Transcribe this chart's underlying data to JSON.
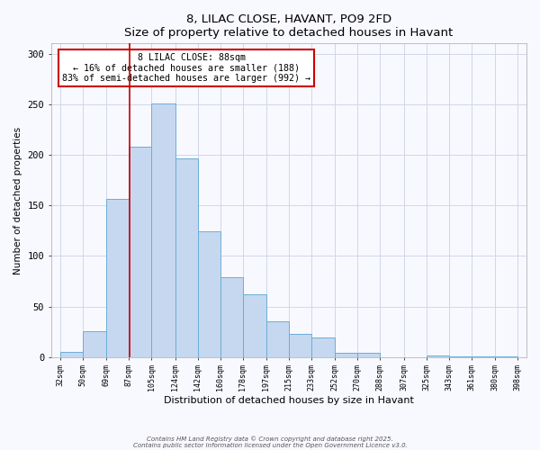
{
  "title": "8, LILAC CLOSE, HAVANT, PO9 2FD",
  "subtitle": "Size of property relative to detached houses in Havant",
  "xlabel": "Distribution of detached houses by size in Havant",
  "ylabel": "Number of detached properties",
  "bar_left_edges": [
    32,
    50,
    69,
    87,
    105,
    124,
    142,
    160,
    178,
    197,
    215,
    233,
    252,
    270,
    288,
    307,
    325,
    343,
    361,
    380
  ],
  "bar_widths": [
    18,
    19,
    18,
    18,
    19,
    18,
    18,
    18,
    19,
    18,
    18,
    19,
    18,
    18,
    19,
    18,
    18,
    18,
    19,
    18
  ],
  "bar_heights": [
    5,
    26,
    156,
    208,
    251,
    196,
    124,
    79,
    62,
    35,
    23,
    19,
    4,
    4,
    0,
    0,
    2,
    1,
    1,
    1
  ],
  "tick_labels": [
    "32sqm",
    "50sqm",
    "69sqm",
    "87sqm",
    "105sqm",
    "124sqm",
    "142sqm",
    "160sqm",
    "178sqm",
    "197sqm",
    "215sqm",
    "233sqm",
    "252sqm",
    "270sqm",
    "288sqm",
    "307sqm",
    "325sqm",
    "343sqm",
    "361sqm",
    "380sqm",
    "398sqm"
  ],
  "tick_positions": [
    32,
    50,
    69,
    87,
    105,
    124,
    142,
    160,
    178,
    197,
    215,
    233,
    252,
    270,
    288,
    307,
    325,
    343,
    361,
    380,
    398
  ],
  "bar_color": "#c5d8f0",
  "bar_edge_color": "#6baed6",
  "marker_x": 88,
  "marker_color": "#cc0000",
  "ylim": [
    0,
    310
  ],
  "xlim": [
    25,
    405
  ],
  "annotation_title": "8 LILAC CLOSE: 88sqm",
  "annotation_line1": "← 16% of detached houses are smaller (188)",
  "annotation_line2": "83% of semi-detached houses are larger (992) →",
  "annotation_box_color": "#ffffff",
  "annotation_box_edge_color": "#cc0000",
  "footer_line1": "Contains HM Land Registry data © Crown copyright and database right 2025.",
  "footer_line2": "Contains public sector information licensed under the Open Government Licence v3.0.",
  "background_color": "#f8f8ff",
  "grid_color": "#d0d8e8"
}
